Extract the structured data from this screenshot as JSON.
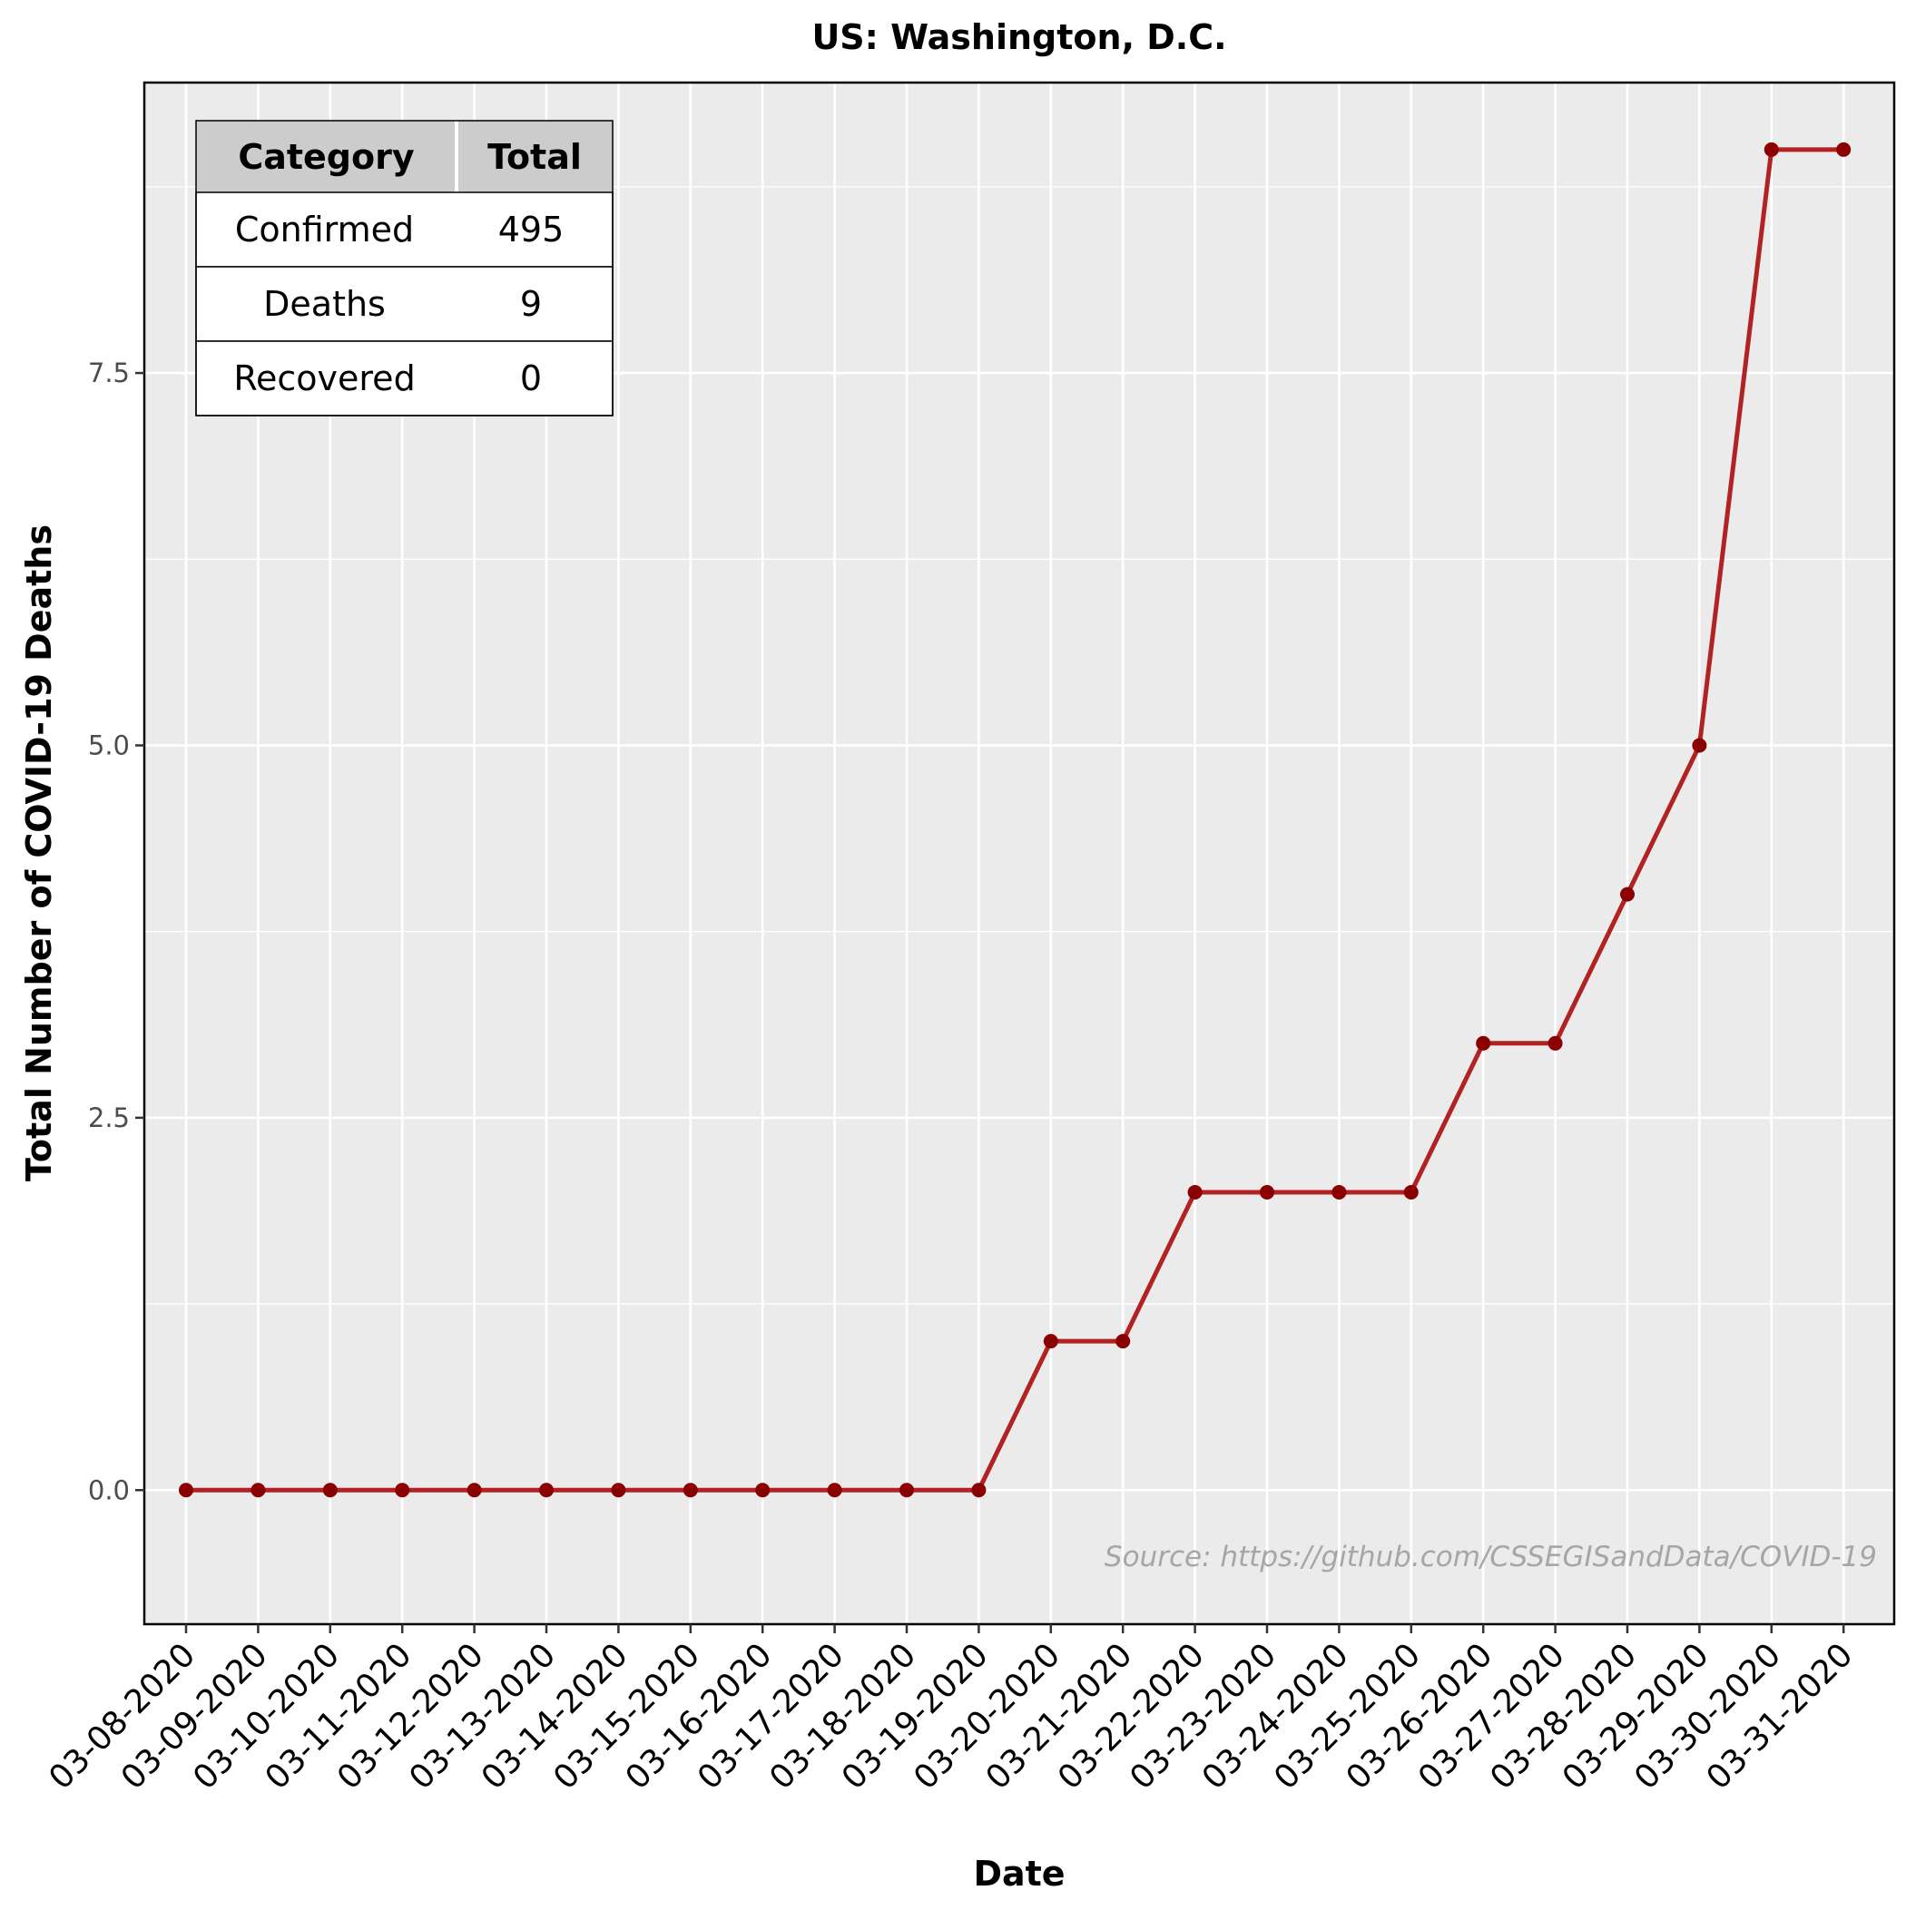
{
  "chart_data": {
    "type": "line",
    "title": "US: Washington, D.C.",
    "xlabel": "Date",
    "ylabel": "Total Number of COVID-19 Deaths",
    "x": [
      "03-08-2020",
      "03-09-2020",
      "03-10-2020",
      "03-11-2020",
      "03-12-2020",
      "03-13-2020",
      "03-14-2020",
      "03-15-2020",
      "03-16-2020",
      "03-17-2020",
      "03-18-2020",
      "03-19-2020",
      "03-20-2020",
      "03-21-2020",
      "03-22-2020",
      "03-23-2020",
      "03-24-2020",
      "03-25-2020",
      "03-26-2020",
      "03-27-2020",
      "03-28-2020",
      "03-29-2020",
      "03-30-2020",
      "03-31-2020"
    ],
    "series": [
      {
        "values": [
          0,
          0,
          0,
          0,
          0,
          0,
          0,
          0,
          0,
          0,
          0,
          0,
          1,
          1,
          2,
          2,
          2,
          2,
          3,
          3,
          4,
          5,
          9,
          9
        ],
        "color": "#b22222"
      }
    ],
    "yticks": [
      "0.0",
      "2.5",
      "5.0",
      "7.5"
    ],
    "ylim": [
      -0.9,
      9.45
    ],
    "grid": true,
    "background": "#ebebeb",
    "line_color": "#b22222",
    "marker_color": "#8b0000",
    "summary_table": {
      "headers": [
        "Category",
        "Total"
      ],
      "rows": [
        [
          "Confirmed",
          "495"
        ],
        [
          "Deaths",
          "9"
        ],
        [
          "Recovered",
          "0"
        ]
      ]
    },
    "annotation": "Source: https://github.com/CSSEGISandData/COVID-19"
  }
}
